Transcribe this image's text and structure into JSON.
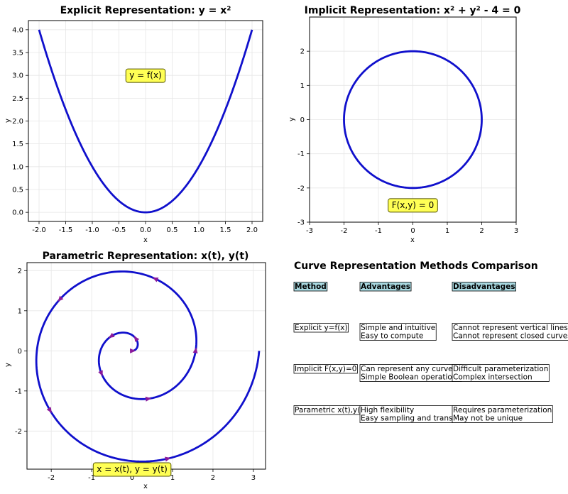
{
  "colors": {
    "curve": "#1010cc",
    "arrow": "#8b1a9b",
    "annotation_fill": "#ffff55",
    "annotation_edge": "#555500",
    "grid": "#e6e6e6",
    "header_fill": "#a8d8e0"
  },
  "chart_data": [
    {
      "type": "line",
      "title": "Explicit Representation: y = x²",
      "xlabel": "x",
      "ylabel": "y",
      "xlim": [
        -2.2,
        2.2
      ],
      "ylim": [
        -0.2,
        4.2
      ],
      "xticks": [
        "-2.0",
        "-1.5",
        "-1.0",
        "-0.5",
        "0.0",
        "0.5",
        "1.0",
        "1.5",
        "2.0"
      ],
      "yticks": [
        "0.0",
        "0.5",
        "1.0",
        "1.5",
        "2.0",
        "2.5",
        "3.0",
        "3.5",
        "4.0"
      ],
      "grid": true,
      "series": [
        {
          "function": "y = x^2",
          "x_range": [
            -2,
            2
          ]
        }
      ],
      "annotation": {
        "text": "y = f(x)",
        "x": 0.0,
        "y": 3.0
      }
    },
    {
      "type": "line",
      "title": "Implicit Representation: x² + y² - 4 = 0",
      "xlabel": "x",
      "ylabel": "y",
      "xlim": [
        -3,
        3
      ],
      "ylim": [
        -3,
        3
      ],
      "xticks": [
        "-3",
        "-2",
        "-1",
        "0",
        "1",
        "2",
        "3"
      ],
      "yticks": [
        "-3",
        "-2",
        "-1",
        "0",
        "1",
        "2"
      ],
      "grid": true,
      "series": [
        {
          "function": "x^2 + y^2 = 4",
          "radius": 2
        }
      ],
      "annotation": {
        "text": "F(x,y) = 0",
        "x": 0.0,
        "y": -2.5
      }
    },
    {
      "type": "line",
      "title": "Parametric Representation: x(t), y(t)",
      "xlabel": "x",
      "ylabel": "y",
      "xlim": [
        -2.6,
        3.3
      ],
      "ylim": [
        -2.95,
        2.2
      ],
      "xticks": [
        "-2",
        "-1",
        "0",
        "1",
        "2",
        "3"
      ],
      "yticks": [
        "-2",
        "-1",
        "0",
        "1",
        "2"
      ],
      "grid": true,
      "series": [
        {
          "function": "x = (t/4)cos t, y = (t/4)sin t",
          "t_range": [
            0,
            12.566
          ],
          "direction_arrows": 10
        }
      ],
      "annotation": {
        "text": "x = x(t), y = y(t)",
        "x": 0.0,
        "y": -2.95
      }
    }
  ],
  "comparison": {
    "title": "Curve Representation Methods Comparison",
    "headers": [
      "Method",
      "Advantages",
      "Disadvantages"
    ],
    "rows": [
      {
        "method": "Explicit y=f(x)",
        "adv": [
          "Simple and intuitive",
          "Easy to compute"
        ],
        "dis": [
          "Cannot represent vertical lines",
          "Cannot represent closed curves"
        ]
      },
      {
        "method": "Implicit F(x,y)=0",
        "adv": [
          "Can represent any curve",
          "Simple Boolean operations"
        ],
        "dis": [
          "Difficult parameterization",
          "Complex intersection"
        ]
      },
      {
        "method": "Parametric x(t),y(t)",
        "adv": [
          "High flexibility",
          "Easy sampling and transformation"
        ],
        "dis": [
          "Requires parameterization",
          "May not be unique"
        ]
      }
    ]
  }
}
